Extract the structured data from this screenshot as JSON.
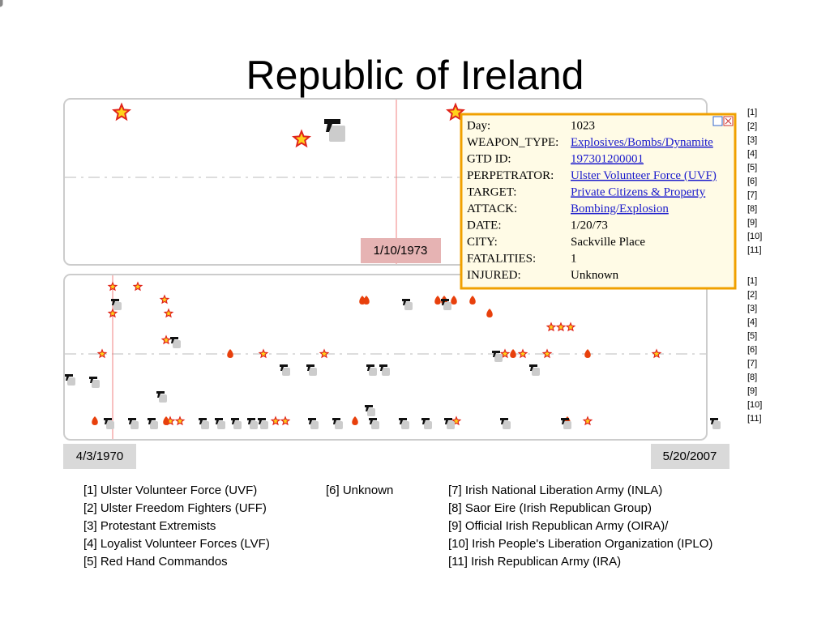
{
  "title": "Republic of Ireland",
  "top_panel": {
    "date_label": "1/10/1973"
  },
  "tooltip": {
    "rows": [
      {
        "key": "Day:",
        "value": 1023
      },
      {
        "key": "WEAPON_TYPE:",
        "value": "Explosives/Bombs/Dynamite",
        "link": true
      },
      {
        "key": "GTD ID:",
        "value": "197301200001",
        "link": true
      },
      {
        "key": "PERPETRATOR:",
        "value": "Ulster Volunteer Force (UVF)",
        "link": true
      },
      {
        "key": "TARGET:",
        "value": "Private Citizens & Property",
        "link": true
      },
      {
        "key": "ATTACK:",
        "value": "Bombing/Explosion",
        "link": true
      },
      {
        "key": "DATE:",
        "value": "1/20/73"
      },
      {
        "key": "CITY:",
        "value": "Sackville Place"
      },
      {
        "key": "FATALITIES:",
        "value": 1
      },
      {
        "key": "INJURED:",
        "value": "Unknown"
      }
    ]
  },
  "side_labels_top": [
    "[1]",
    "[2]",
    "[3]",
    "[4]",
    "[5]",
    "[6]",
    "[7]",
    "[8]",
    "[9]",
    "[10]",
    "[11]"
  ],
  "side_labels_bottom": [
    "[1]",
    "[2]",
    "[3]",
    "[4]",
    "[5]",
    "[6]",
    "[7]",
    "[8]",
    "[9]",
    "[10]",
    "[11]"
  ],
  "timeline": {
    "start": "4/3/1970",
    "end": "5/20/2007"
  },
  "legend": {
    "columns": [
      [
        "[1] Ulster Volunteer Force (UVF)",
        "[2] Ulster Freedom Fighters (UFF)",
        "[3] Protestant Extremists",
        "[4] Loyalist Volunteer Forces (LVF)",
        "[5] Red Hand Commandos"
      ],
      [
        "[6] Unknown"
      ],
      [
        "[7] Irish National Liberation Army (INLA)",
        "[8] Saor Eire (Irish Republican Group)",
        "[9] Official Irish Republican Army (OIRA)/",
        "[10] Irish People's Liberation Organization (IPLO)",
        "[11] Irish Republican Army (IRA)"
      ]
    ]
  }
}
